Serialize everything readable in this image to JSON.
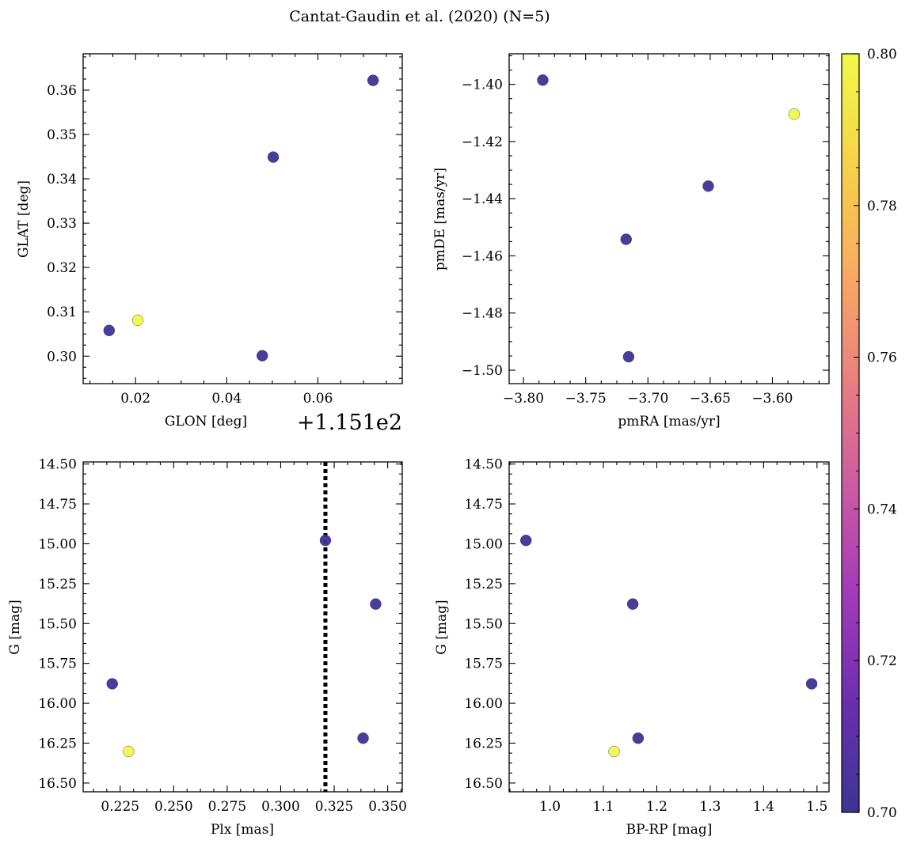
{
  "title": "Cantat-Gaudin et al. (2020) (N=5)",
  "colors": {
    "low": "#3b3593",
    "high": "#f0f94a",
    "cmap_stops": [
      "#3b3593",
      "#6a2fae",
      "#a33ab8",
      "#cc5aa3",
      "#e8807f",
      "#f8ab62",
      "#f6d349",
      "#f0f94a"
    ],
    "edge": "#2a2a6a",
    "vline": "#000000"
  },
  "colorbar": {
    "min": 0.7,
    "max": 0.8,
    "ticks": [
      "0.70",
      "0.72",
      "0.74",
      "0.76",
      "0.78",
      "0.80"
    ]
  },
  "chart_data": [
    {
      "type": "scatter",
      "name": "glon-glat",
      "xlabel": "GLON [deg]",
      "ylabel": "GLAT [deg]",
      "x_offset_text": "+1.151e2",
      "x_offset": 115.1,
      "xlim": [
        115.1085,
        115.1785
      ],
      "ylim": [
        0.2938,
        0.3682
      ],
      "xticks": [
        0.02,
        0.04,
        0.06
      ],
      "xtick_labels": [
        "0.02",
        "0.04",
        "0.06"
      ],
      "yticks": [
        0.3,
        0.31,
        0.32,
        0.33,
        0.34,
        0.35,
        0.36
      ],
      "ytick_labels": [
        "0.30",
        "0.31",
        "0.32",
        "0.33",
        "0.34",
        "0.35",
        "0.36"
      ],
      "x": [
        115.1142,
        115.1205,
        115.1478,
        115.1502,
        115.1721
      ],
      "y": [
        0.3058,
        0.3081,
        0.3001,
        0.3449,
        0.3622
      ],
      "c": [
        0.7,
        0.8,
        0.7,
        0.7,
        0.7
      ]
    },
    {
      "type": "scatter",
      "name": "pm",
      "xlabel": "pmRA [mas/yr]",
      "ylabel": "pmDE [mas/yr]",
      "xlim": [
        -3.8115,
        -3.5545
      ],
      "ylim": [
        -1.5047,
        -1.3893
      ],
      "xticks": [
        -3.8,
        -3.75,
        -3.7,
        -3.65,
        -3.6
      ],
      "xtick_labels": [
        "−3.80",
        "−3.75",
        "−3.70",
        "−3.65",
        "−3.60"
      ],
      "yticks": [
        -1.5,
        -1.48,
        -1.46,
        -1.44,
        -1.42,
        -1.4
      ],
      "ytick_labels": [
        "−1.50",
        "−1.48",
        "−1.46",
        "−1.44",
        "−1.42",
        "−1.40"
      ],
      "x": [
        -3.7845,
        -3.7175,
        -3.7155,
        -3.6515,
        -3.5825
      ],
      "y": [
        -1.3985,
        -1.4542,
        -1.4953,
        -1.4356,
        -1.4104
      ],
      "c": [
        0.7,
        0.7,
        0.7,
        0.7,
        0.8
      ]
    },
    {
      "type": "scatter",
      "name": "plx-g",
      "xlabel": "Plx [mas]",
      "ylabel": "G [mag]",
      "invert_y": true,
      "xlim": [
        0.2077,
        0.3568
      ],
      "ylim": [
        14.487,
        16.555
      ],
      "xticks": [
        0.225,
        0.25,
        0.275,
        0.3,
        0.325,
        0.35
      ],
      "xtick_labels": [
        "0.225",
        "0.250",
        "0.275",
        "0.300",
        "0.325",
        "0.350"
      ],
      "yticks": [
        14.5,
        14.75,
        15.0,
        15.25,
        15.5,
        15.75,
        16.0,
        16.25,
        16.5
      ],
      "ytick_labels": [
        "14.50",
        "14.75",
        "15.00",
        "15.25",
        "15.50",
        "15.75",
        "16.00",
        "16.25",
        "16.50"
      ],
      "x": [
        0.2213,
        0.2289,
        0.3209,
        0.3444,
        0.3385
      ],
      "y": [
        15.878,
        16.302,
        14.979,
        15.378,
        16.219
      ],
      "c": [
        0.7,
        0.8,
        0.7,
        0.7,
        0.7
      ],
      "vline_x": 0.3209
    },
    {
      "type": "scatter",
      "name": "cmd",
      "xlabel": "BP-RP [mag]",
      "ylabel": "G [mag]",
      "invert_y": true,
      "xlim": [
        0.9235,
        1.5225
      ],
      "ylim": [
        14.487,
        16.555
      ],
      "xticks": [
        1.0,
        1.1,
        1.2,
        1.3,
        1.4,
        1.5
      ],
      "xtick_labels": [
        "1.0",
        "1.1",
        "1.2",
        "1.3",
        "1.4",
        "1.5"
      ],
      "yticks": [
        14.5,
        14.75,
        15.0,
        15.25,
        15.5,
        15.75,
        16.0,
        16.25,
        16.5
      ],
      "ytick_labels": [
        "14.50",
        "14.75",
        "15.00",
        "15.25",
        "15.50",
        "15.75",
        "16.00",
        "16.25",
        "16.50"
      ],
      "x": [
        0.955,
        1.155,
        1.49,
        1.165,
        1.12
      ],
      "y": [
        14.979,
        15.378,
        15.878,
        16.219,
        16.302
      ],
      "c": [
        0.7,
        0.7,
        0.7,
        0.7,
        0.8
      ]
    }
  ]
}
